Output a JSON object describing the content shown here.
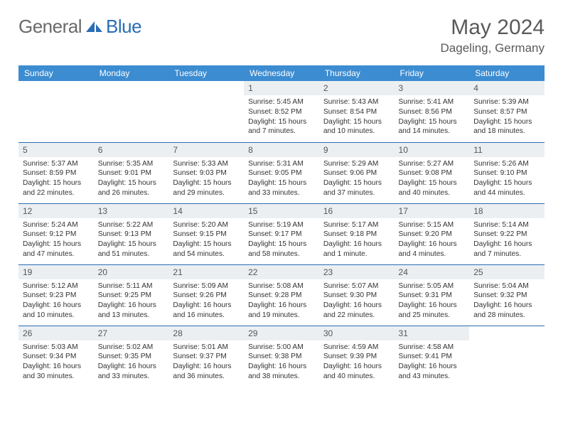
{
  "brand": {
    "word1": "General",
    "word2": "Blue"
  },
  "title": {
    "month": "May 2024",
    "location": "Dageling, Germany"
  },
  "colors": {
    "header_bg": "#3c8cd1",
    "header_fg": "#ffffff",
    "day_bg": "#eceff2",
    "rule": "#2a6db5",
    "brand_gray": "#6a6a6a",
    "brand_blue": "#2a6db5"
  },
  "weekdays": [
    "Sunday",
    "Monday",
    "Tuesday",
    "Wednesday",
    "Thursday",
    "Friday",
    "Saturday"
  ],
  "weeks": [
    [
      {
        "n": "",
        "l": [
          "",
          "",
          "",
          ""
        ]
      },
      {
        "n": "",
        "l": [
          "",
          "",
          "",
          ""
        ]
      },
      {
        "n": "",
        "l": [
          "",
          "",
          "",
          ""
        ]
      },
      {
        "n": "1",
        "l": [
          "Sunrise: 5:45 AM",
          "Sunset: 8:52 PM",
          "Daylight: 15 hours",
          "and 7 minutes."
        ]
      },
      {
        "n": "2",
        "l": [
          "Sunrise: 5:43 AM",
          "Sunset: 8:54 PM",
          "Daylight: 15 hours",
          "and 10 minutes."
        ]
      },
      {
        "n": "3",
        "l": [
          "Sunrise: 5:41 AM",
          "Sunset: 8:56 PM",
          "Daylight: 15 hours",
          "and 14 minutes."
        ]
      },
      {
        "n": "4",
        "l": [
          "Sunrise: 5:39 AM",
          "Sunset: 8:57 PM",
          "Daylight: 15 hours",
          "and 18 minutes."
        ]
      }
    ],
    [
      {
        "n": "5",
        "l": [
          "Sunrise: 5:37 AM",
          "Sunset: 8:59 PM",
          "Daylight: 15 hours",
          "and 22 minutes."
        ]
      },
      {
        "n": "6",
        "l": [
          "Sunrise: 5:35 AM",
          "Sunset: 9:01 PM",
          "Daylight: 15 hours",
          "and 26 minutes."
        ]
      },
      {
        "n": "7",
        "l": [
          "Sunrise: 5:33 AM",
          "Sunset: 9:03 PM",
          "Daylight: 15 hours",
          "and 29 minutes."
        ]
      },
      {
        "n": "8",
        "l": [
          "Sunrise: 5:31 AM",
          "Sunset: 9:05 PM",
          "Daylight: 15 hours",
          "and 33 minutes."
        ]
      },
      {
        "n": "9",
        "l": [
          "Sunrise: 5:29 AM",
          "Sunset: 9:06 PM",
          "Daylight: 15 hours",
          "and 37 minutes."
        ]
      },
      {
        "n": "10",
        "l": [
          "Sunrise: 5:27 AM",
          "Sunset: 9:08 PM",
          "Daylight: 15 hours",
          "and 40 minutes."
        ]
      },
      {
        "n": "11",
        "l": [
          "Sunrise: 5:26 AM",
          "Sunset: 9:10 PM",
          "Daylight: 15 hours",
          "and 44 minutes."
        ]
      }
    ],
    [
      {
        "n": "12",
        "l": [
          "Sunrise: 5:24 AM",
          "Sunset: 9:12 PM",
          "Daylight: 15 hours",
          "and 47 minutes."
        ]
      },
      {
        "n": "13",
        "l": [
          "Sunrise: 5:22 AM",
          "Sunset: 9:13 PM",
          "Daylight: 15 hours",
          "and 51 minutes."
        ]
      },
      {
        "n": "14",
        "l": [
          "Sunrise: 5:20 AM",
          "Sunset: 9:15 PM",
          "Daylight: 15 hours",
          "and 54 minutes."
        ]
      },
      {
        "n": "15",
        "l": [
          "Sunrise: 5:19 AM",
          "Sunset: 9:17 PM",
          "Daylight: 15 hours",
          "and 58 minutes."
        ]
      },
      {
        "n": "16",
        "l": [
          "Sunrise: 5:17 AM",
          "Sunset: 9:18 PM",
          "Daylight: 16 hours",
          "and 1 minute."
        ]
      },
      {
        "n": "17",
        "l": [
          "Sunrise: 5:15 AM",
          "Sunset: 9:20 PM",
          "Daylight: 16 hours",
          "and 4 minutes."
        ]
      },
      {
        "n": "18",
        "l": [
          "Sunrise: 5:14 AM",
          "Sunset: 9:22 PM",
          "Daylight: 16 hours",
          "and 7 minutes."
        ]
      }
    ],
    [
      {
        "n": "19",
        "l": [
          "Sunrise: 5:12 AM",
          "Sunset: 9:23 PM",
          "Daylight: 16 hours",
          "and 10 minutes."
        ]
      },
      {
        "n": "20",
        "l": [
          "Sunrise: 5:11 AM",
          "Sunset: 9:25 PM",
          "Daylight: 16 hours",
          "and 13 minutes."
        ]
      },
      {
        "n": "21",
        "l": [
          "Sunrise: 5:09 AM",
          "Sunset: 9:26 PM",
          "Daylight: 16 hours",
          "and 16 minutes."
        ]
      },
      {
        "n": "22",
        "l": [
          "Sunrise: 5:08 AM",
          "Sunset: 9:28 PM",
          "Daylight: 16 hours",
          "and 19 minutes."
        ]
      },
      {
        "n": "23",
        "l": [
          "Sunrise: 5:07 AM",
          "Sunset: 9:30 PM",
          "Daylight: 16 hours",
          "and 22 minutes."
        ]
      },
      {
        "n": "24",
        "l": [
          "Sunrise: 5:05 AM",
          "Sunset: 9:31 PM",
          "Daylight: 16 hours",
          "and 25 minutes."
        ]
      },
      {
        "n": "25",
        "l": [
          "Sunrise: 5:04 AM",
          "Sunset: 9:32 PM",
          "Daylight: 16 hours",
          "and 28 minutes."
        ]
      }
    ],
    [
      {
        "n": "26",
        "l": [
          "Sunrise: 5:03 AM",
          "Sunset: 9:34 PM",
          "Daylight: 16 hours",
          "and 30 minutes."
        ]
      },
      {
        "n": "27",
        "l": [
          "Sunrise: 5:02 AM",
          "Sunset: 9:35 PM",
          "Daylight: 16 hours",
          "and 33 minutes."
        ]
      },
      {
        "n": "28",
        "l": [
          "Sunrise: 5:01 AM",
          "Sunset: 9:37 PM",
          "Daylight: 16 hours",
          "and 36 minutes."
        ]
      },
      {
        "n": "29",
        "l": [
          "Sunrise: 5:00 AM",
          "Sunset: 9:38 PM",
          "Daylight: 16 hours",
          "and 38 minutes."
        ]
      },
      {
        "n": "30",
        "l": [
          "Sunrise: 4:59 AM",
          "Sunset: 9:39 PM",
          "Daylight: 16 hours",
          "and 40 minutes."
        ]
      },
      {
        "n": "31",
        "l": [
          "Sunrise: 4:58 AM",
          "Sunset: 9:41 PM",
          "Daylight: 16 hours",
          "and 43 minutes."
        ]
      },
      {
        "n": "",
        "l": [
          "",
          "",
          "",
          ""
        ]
      }
    ]
  ]
}
